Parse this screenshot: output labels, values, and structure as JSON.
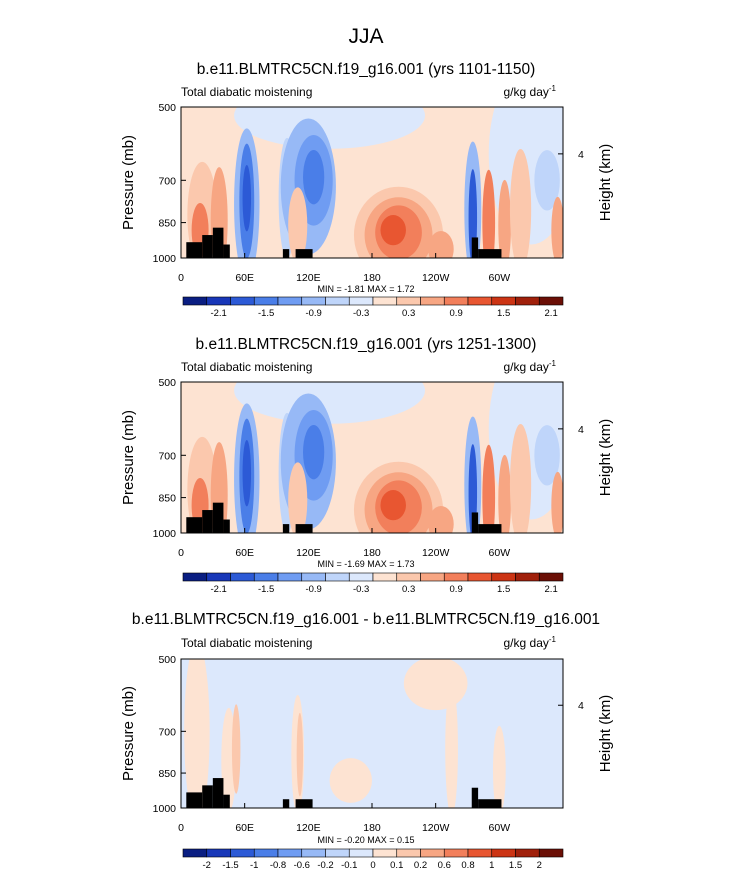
{
  "page_title": "JJA",
  "left_axis_label": "Pressure (mb)",
  "right_axis_label": "Height (km)",
  "right_axis_tick": "4",
  "chart_data": [
    {
      "type": "heatmap",
      "title": "b.e11.BLMTRC5CN.f19_g16.001 (yrs 1101-1150)",
      "left_string": "Total diabatic moistening",
      "units": "g/kg day",
      "units_exp": "-1",
      "y_ticks": [
        "500",
        "700",
        "850",
        "1000"
      ],
      "x_ticks": [
        "0",
        "60E",
        "120E",
        "180",
        "120W",
        "60W"
      ],
      "stats": "MIN =  -1.81  MAX =   1.72",
      "colorbar_colors": [
        "#0a1e82",
        "#1837b8",
        "#2c5ad6",
        "#4a7ee8",
        "#6f9cf2",
        "#97b9f6",
        "#bfd5fa",
        "#dce8fc",
        "#fde3d2",
        "#fbc8ad",
        "#f7a683",
        "#f27f5b",
        "#e85631",
        "#cc3414",
        "#a0200b",
        "#6b0f06"
      ],
      "colorbar_labels": [
        "-2.1",
        "-1.5",
        "-0.9",
        "-0.3",
        "0.3",
        "0.9",
        "1.5",
        "2.1"
      ],
      "variant": "a"
    },
    {
      "type": "heatmap",
      "title": "b.e11.BLMTRC5CN.f19_g16.001 (yrs 1251-1300)",
      "left_string": "Total diabatic moistening",
      "units": "g/kg day",
      "units_exp": "-1",
      "y_ticks": [
        "500",
        "700",
        "850",
        "1000"
      ],
      "x_ticks": [
        "0",
        "60E",
        "120E",
        "180",
        "120W",
        "60W"
      ],
      "stats": "MIN =  -1.69  MAX =   1.73",
      "colorbar_colors": [
        "#0a1e82",
        "#1837b8",
        "#2c5ad6",
        "#4a7ee8",
        "#6f9cf2",
        "#97b9f6",
        "#bfd5fa",
        "#dce8fc",
        "#fde3d2",
        "#fbc8ad",
        "#f7a683",
        "#f27f5b",
        "#e85631",
        "#cc3414",
        "#a0200b",
        "#6b0f06"
      ],
      "colorbar_labels": [
        "-2.1",
        "-1.5",
        "-0.9",
        "-0.3",
        "0.3",
        "0.9",
        "1.5",
        "2.1"
      ],
      "variant": "b"
    },
    {
      "type": "heatmap",
      "title": "b.e11.BLMTRC5CN.f19_g16.001 - b.e11.BLMTRC5CN.f19_g16.001",
      "left_string": "Total diabatic moistening",
      "units": "g/kg day",
      "units_exp": "-1",
      "y_ticks": [
        "500",
        "700",
        "850",
        "1000"
      ],
      "x_ticks": [
        "0",
        "60E",
        "120E",
        "180",
        "120W",
        "60W"
      ],
      "stats": "MIN =  -0.20  MAX =   0.15",
      "colorbar_colors": [
        "#0a1e82",
        "#1837b8",
        "#2c5ad6",
        "#4a7ee8",
        "#6f9cf2",
        "#97b9f6",
        "#bfd5fa",
        "#dce8fc",
        "#fde3d2",
        "#fbc8ad",
        "#f7a683",
        "#f27f5b",
        "#e85631",
        "#cc3414",
        "#a0200b",
        "#6b0f06"
      ],
      "colorbar_labels": [
        "-2",
        "-1.5",
        "-1",
        "-0.8",
        "-0.6",
        "-0.2",
        "-0.1",
        "0",
        "0.1",
        "0.2",
        "0.6",
        "0.8",
        "1",
        "1.5",
        "2"
      ],
      "variant": "diff"
    }
  ]
}
